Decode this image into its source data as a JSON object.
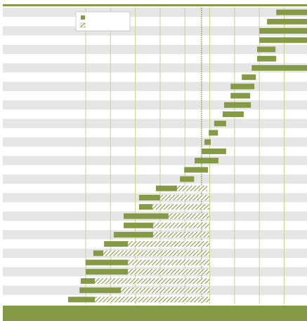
{
  "chart_data": {
    "type": "floating-bar",
    "starts": [
      7.68,
      7.31,
      7.0,
      7.0,
      6.91,
      6.91,
      6.69,
      6.29,
      5.84,
      5.84,
      5.58,
      5.52,
      5.18,
      4.96,
      4.79,
      4.67,
      4.39,
      3.97,
      3.8,
      2.83,
      2.15,
      2.15,
      1.53,
      1.53,
      1.13,
      0.74,
      0.31,
      0,
      0,
      -0.2,
      -0.25,
      -0.71
    ],
    "series": [
      {
        "color": "#849a45",
        "values": [
          1.25,
          1.62,
          1.93,
          1.93,
          0.74,
          0.77,
          2.24,
          0.57,
          0.96,
          0.79,
          1.08,
          0.85,
          0.48,
          0.37,
          0.25,
          0.99,
          0.96,
          0.96,
          0.57,
          0.85,
          0.85,
          0.54,
          1.81,
          1.19,
          1.59,
          0.96,
          0.4,
          1.7,
          1.7,
          0.57,
          1.67,
          1.08
        ]
      },
      {
        "color": "#849a45",
        "pattern": "hatch",
        "values": [
          null,
          null,
          null,
          null,
          null,
          null,
          null,
          null,
          null,
          null,
          null,
          null,
          null,
          null,
          null,
          null,
          null,
          null,
          null,
          1.22,
          1.98,
          2.29,
          1.64,
          2.27,
          2.27,
          3.29,
          4.28,
          3.29,
          3.29,
          4.62,
          3.57,
          4.62
        ]
      }
    ],
    "xlim": [
      -3.34,
      8.92
    ],
    "xticks": [
      0,
      1,
      2,
      3,
      4,
      5,
      6,
      7,
      8
    ],
    "ref_line": 4.67,
    "grid": true,
    "banded_rows": true,
    "legend": "upper left"
  }
}
